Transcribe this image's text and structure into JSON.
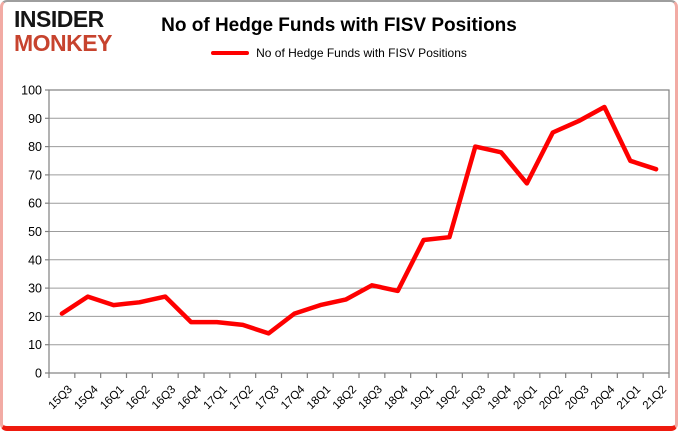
{
  "brand": {
    "line1": "INSIDER",
    "line2": "MONKEY",
    "line1_color": "#151515",
    "line2_color": "#c7432e"
  },
  "header": {
    "title": "No of Hedge Funds with FISV Positions"
  },
  "legend": {
    "label": "No of Hedge Funds with FISV Positions",
    "marker_color": "#fe0000"
  },
  "chart_data": {
    "type": "line",
    "title": "No of Hedge Funds with FISV Positions",
    "categories": [
      "15Q3",
      "15Q4",
      "16Q1",
      "16Q2",
      "16Q3",
      "16Q4",
      "17Q1",
      "17Q2",
      "17Q3",
      "17Q4",
      "18Q1",
      "18Q2",
      "18Q3",
      "18Q4",
      "19Q1",
      "19Q2",
      "19Q3",
      "19Q4",
      "20Q1",
      "20Q2",
      "20Q3",
      "20Q4",
      "21Q1",
      "21Q2"
    ],
    "series": [
      {
        "name": "No of Hedge Funds with FISV Positions",
        "color": "#fe0000",
        "values": [
          21,
          27,
          24,
          25,
          27,
          18,
          18,
          17,
          14,
          21,
          24,
          26,
          31,
          29,
          47,
          48,
          80,
          78,
          67,
          85,
          89,
          94,
          75,
          72
        ]
      }
    ],
    "xlabel": "",
    "ylabel": "",
    "ylim": [
      0,
      100
    ],
    "ytick_step": 10,
    "grid": true,
    "legend_position": "top"
  },
  "colors": {
    "grid": "#9c9c9c",
    "axis": "#808080",
    "plot_background": "#ffffff"
  }
}
